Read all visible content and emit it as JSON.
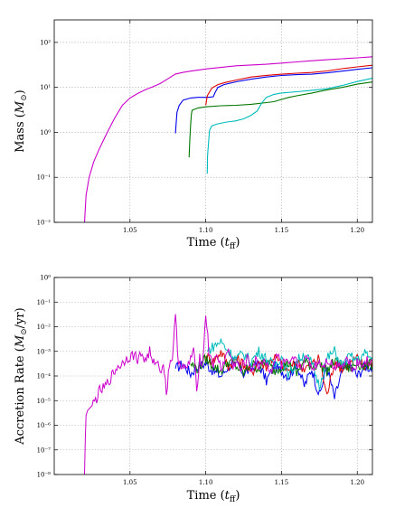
{
  "chart_data": [
    {
      "type": "line",
      "title": "",
      "xlabel": "Time (t_ff)",
      "ylabel": "Mass (M_⊙)",
      "xlim": [
        1.0,
        1.21
      ],
      "ylim_log10": [
        -2,
        2.5
      ],
      "yscale": "log",
      "grid": true,
      "x_ticks": [
        "1.05",
        "1.10",
        "1.15",
        "1.20"
      ],
      "y_ticks": [
        "10⁻²",
        "10⁻¹",
        "10⁰",
        "10¹",
        "10²"
      ],
      "series": [
        {
          "color": "#cc00cc",
          "x": [
            1.02,
            1.021,
            1.023,
            1.026,
            1.03,
            1.035,
            1.04,
            1.045,
            1.05,
            1.055,
            1.06,
            1.065,
            1.07,
            1.075,
            1.08,
            1.085,
            1.09,
            1.1,
            1.11,
            1.12,
            1.13,
            1.14,
            1.15,
            1.16,
            1.17,
            1.18,
            1.19,
            1.2,
            1.21
          ],
          "y": [
            0.01,
            0.04,
            0.1,
            0.22,
            0.45,
            1.0,
            2.1,
            4.0,
            5.8,
            7.3,
            8.8,
            10.3,
            12.2,
            15.5,
            19.8,
            21.5,
            23.0,
            25.6,
            27.8,
            30.2,
            31.5,
            32.6,
            34.6,
            36.8,
            39.0,
            41.2,
            43.2,
            45.4,
            48.0
          ]
        },
        {
          "color": "#0000ee",
          "x": [
            1.08,
            1.0805,
            1.081,
            1.0825,
            1.085,
            1.09,
            1.095,
            1.1,
            1.103,
            1.105,
            1.106,
            1.108,
            1.112,
            1.12,
            1.13,
            1.14,
            1.15,
            1.16,
            1.17,
            1.18,
            1.19,
            1.2,
            1.21
          ],
          "y": [
            0.95,
            1.6,
            2.8,
            4.0,
            5.2,
            5.8,
            6.0,
            6.0,
            6.1,
            6.2,
            7.5,
            10.0,
            11.5,
            13.3,
            15.2,
            17.0,
            18.4,
            19.2,
            19.6,
            21.0,
            23.0,
            25.2,
            27.2
          ]
        },
        {
          "color": "#dd0000",
          "x": [
            1.1,
            1.101,
            1.104,
            1.108,
            1.113,
            1.12,
            1.13,
            1.14,
            1.15,
            1.16,
            1.17,
            1.18,
            1.19,
            1.2,
            1.21
          ],
          "y": [
            4.0,
            6.5,
            9.6,
            11.5,
            12.9,
            14.5,
            17.0,
            18.5,
            19.6,
            20.6,
            21.4,
            23.2,
            26.0,
            28.5,
            31.0
          ]
        },
        {
          "color": "#007700",
          "x": [
            1.089,
            1.0895,
            1.09,
            1.0905,
            1.091,
            1.093,
            1.095,
            1.1,
            1.11,
            1.12,
            1.13,
            1.14,
            1.145,
            1.15,
            1.155,
            1.16,
            1.17,
            1.18,
            1.19,
            1.2,
            1.21
          ],
          "y": [
            0.28,
            0.7,
            1.5,
            2.5,
            3.1,
            3.3,
            3.5,
            3.7,
            3.9,
            4.0,
            4.2,
            4.6,
            4.8,
            5.4,
            6.0,
            6.5,
            7.5,
            8.8,
            10.0,
            11.8,
            13.2
          ]
        },
        {
          "color": "#00bbbb",
          "x": [
            1.101,
            1.1012,
            1.102,
            1.1025,
            1.104,
            1.108,
            1.114,
            1.12,
            1.125,
            1.13,
            1.134,
            1.137,
            1.14,
            1.145,
            1.15,
            1.16,
            1.17,
            1.18,
            1.19,
            1.2,
            1.21
          ],
          "y": [
            0.12,
            0.3,
            0.7,
            1.1,
            1.4,
            1.55,
            1.7,
            1.8,
            2.0,
            2.4,
            3.0,
            4.5,
            6.0,
            7.0,
            7.5,
            8.0,
            8.6,
            9.3,
            11.0,
            13.5,
            16.0
          ]
        }
      ]
    },
    {
      "type": "line",
      "title": "",
      "xlabel": "Time (t_ff)",
      "ylabel": "Accretion Rate (M_⊙/yr)",
      "xlim": [
        1.0,
        1.21
      ],
      "ylim_log10": [
        -8,
        0
      ],
      "yscale": "log",
      "grid": true,
      "x_ticks": [
        "1.05",
        "1.10",
        "1.15",
        "1.20"
      ],
      "y_ticks": [
        "10⁻⁸",
        "10⁻⁷",
        "10⁻⁶",
        "10⁻⁵",
        "10⁻⁴",
        "10⁻³",
        "10⁻²",
        "10⁻¹",
        "10⁰"
      ],
      "series": [
        {
          "color": "#0000ee",
          "x": [
            1.08,
            1.085,
            1.09,
            1.095,
            1.1,
            1.105,
            1.11,
            1.115,
            1.12,
            1.125,
            1.13,
            1.135,
            1.14,
            1.145,
            1.15,
            1.155,
            1.16,
            1.165,
            1.17,
            1.175,
            1.18,
            1.185,
            1.19,
            1.195,
            1.2,
            1.205,
            1.21
          ],
          "log10_y": [
            -3.7,
            -3.5,
            -3.9,
            -3.6,
            -3.5,
            -3.8,
            -4.0,
            -3.6,
            -3.4,
            -3.9,
            -3.7,
            -3.5,
            -4.2,
            -3.6,
            -3.8,
            -4.0,
            -3.5,
            -4.4,
            -3.7,
            -4.8,
            -3.6,
            -4.9,
            -3.8,
            -3.5,
            -4.0,
            -3.6,
            -3.7
          ]
        },
        {
          "color": "#dd0000",
          "x": [
            1.1,
            1.105,
            1.11,
            1.115,
            1.12,
            1.125,
            1.13,
            1.135,
            1.14,
            1.145,
            1.15,
            1.155,
            1.16,
            1.165,
            1.17,
            1.175,
            1.18,
            1.185,
            1.19,
            1.195,
            1.2,
            1.205,
            1.21
          ],
          "log10_y": [
            -3.2,
            -3.4,
            -3.0,
            -3.6,
            -3.3,
            -3.5,
            -3.9,
            -3.4,
            -3.6,
            -3.2,
            -3.5,
            -3.8,
            -3.4,
            -3.7,
            -3.5,
            -3.3,
            -4.8,
            -3.4,
            -3.7,
            -3.5,
            -3.3,
            -3.6,
            -3.4
          ]
        },
        {
          "color": "#007700",
          "x": [
            1.09,
            1.095,
            1.1,
            1.105,
            1.11,
            1.115,
            1.12,
            1.125,
            1.13,
            1.135,
            1.14,
            1.145,
            1.15,
            1.155,
            1.16,
            1.165,
            1.17,
            1.175,
            1.18,
            1.185,
            1.19,
            1.195,
            1.2,
            1.205,
            1.21
          ],
          "log10_y": [
            -3.5,
            -3.7,
            -3.3,
            -3.6,
            -3.8,
            -3.4,
            -3.6,
            -3.9,
            -3.5,
            -3.7,
            -3.4,
            -3.8,
            -3.6,
            -3.5,
            -3.9,
            -3.4,
            -3.6,
            -3.5,
            -3.8,
            -3.4,
            -3.6,
            -3.7,
            -3.5,
            -3.6,
            -3.5
          ]
        },
        {
          "color": "#00bbbb",
          "x": [
            1.101,
            1.105,
            1.11,
            1.115,
            1.12,
            1.125,
            1.13,
            1.135,
            1.14,
            1.145,
            1.15,
            1.155,
            1.16,
            1.165,
            1.17,
            1.175,
            1.18,
            1.185,
            1.19,
            1.195,
            1.2,
            1.205,
            1.21
          ],
          "log10_y": [
            -3.0,
            -2.8,
            -2.6,
            -3.0,
            -3.3,
            -3.1,
            -3.4,
            -3.0,
            -3.3,
            -3.6,
            -3.2,
            -4.0,
            -3.4,
            -3.1,
            -3.5,
            -4.4,
            -3.3,
            -3.0,
            -3.6,
            -3.2,
            -3.4,
            -3.1,
            -3.3
          ]
        },
        {
          "color": "#cc00cc",
          "x": [
            1.02,
            1.0205,
            1.021,
            1.022,
            1.025,
            1.028,
            1.03,
            1.033,
            1.035,
            1.038,
            1.04,
            1.042,
            1.045,
            1.047,
            1.05,
            1.053,
            1.055,
            1.058,
            1.06,
            1.063,
            1.065,
            1.067,
            1.07,
            1.072,
            1.074,
            1.076,
            1.078,
            1.08,
            1.082,
            1.085,
            1.087,
            1.09,
            1.092,
            1.094,
            1.096,
            1.098,
            1.1,
            1.102,
            1.105,
            1.108,
            1.11,
            1.113,
            1.115,
            1.118,
            1.12,
            1.123,
            1.125,
            1.128,
            1.13,
            1.133,
            1.135,
            1.138,
            1.14,
            1.143,
            1.145,
            1.148,
            1.15,
            1.153,
            1.155,
            1.158,
            1.16,
            1.163,
            1.165,
            1.168,
            1.17,
            1.173,
            1.175,
            1.178,
            1.18,
            1.183,
            1.185,
            1.188,
            1.19,
            1.193,
            1.195,
            1.198,
            1.2,
            1.203,
            1.205,
            1.208,
            1.21
          ],
          "log10_y": [
            -8.0,
            -6.5,
            -5.6,
            -5.4,
            -5.2,
            -4.9,
            -4.6,
            -4.5,
            -4.3,
            -4.0,
            -3.8,
            -3.6,
            -3.5,
            -3.3,
            -3.2,
            -3.15,
            -3.3,
            -3.1,
            -3.4,
            -3.0,
            -3.6,
            -3.3,
            -3.8,
            -3.4,
            -4.7,
            -3.5,
            -3.2,
            -1.6,
            -3.4,
            -3.6,
            -3.8,
            -3.3,
            -2.9,
            -4.6,
            -3.2,
            -3.5,
            -1.4,
            -3.0,
            -3.5,
            -3.2,
            -3.7,
            -3.3,
            -2.9,
            -3.6,
            -3.4,
            -3.8,
            -3.5,
            -3.3,
            -3.7,
            -3.4,
            -3.6,
            -3.3,
            -3.5,
            -3.8,
            -3.4,
            -3.2,
            -3.6,
            -3.4,
            -3.7,
            -3.3,
            -3.5,
            -3.6,
            -3.4,
            -3.3,
            -3.7,
            -3.5,
            -3.4,
            -3.6,
            -3.3,
            -3.5,
            -3.7,
            -3.4,
            -3.6,
            -3.3,
            -3.5,
            -3.7,
            -3.4,
            -3.6,
            -3.3,
            -3.5,
            -3.4
          ]
        }
      ]
    }
  ]
}
